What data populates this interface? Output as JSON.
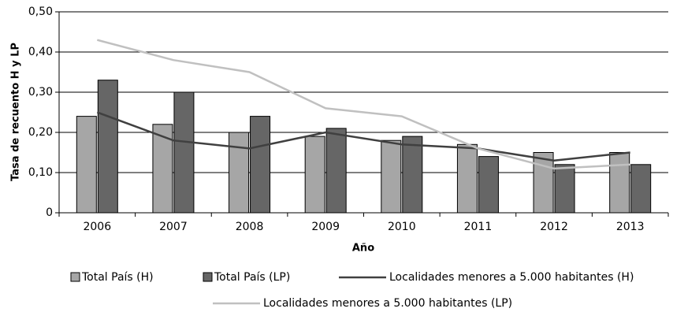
{
  "chart_data": {
    "type": "bar",
    "y_label": "Tasa de recuento H y LP",
    "x_label": "Año",
    "categories": [
      "2006",
      "2007",
      "2008",
      "2009",
      "2010",
      "2011",
      "2012",
      "2013"
    ],
    "series": [
      {
        "name": "Total País (H)",
        "type": "bar",
        "color": "#a6a6a6",
        "values": [
          0.24,
          0.22,
          0.2,
          0.19,
          0.18,
          0.17,
          0.15,
          0.15
        ]
      },
      {
        "name": "Total País (LP)",
        "type": "bar",
        "color": "#666666",
        "values": [
          0.33,
          0.3,
          0.24,
          0.21,
          0.19,
          0.14,
          0.12,
          0.12
        ]
      },
      {
        "name": "Localidades menores a 5.000 habitantes (H)",
        "type": "line",
        "color": "#404040",
        "values": [
          0.25,
          0.18,
          0.16,
          0.2,
          0.17,
          0.16,
          0.13,
          0.15
        ]
      },
      {
        "name": "Localidades menores a 5.000 habitantes (LP)",
        "type": "line",
        "color": "#c0c0c0",
        "values": [
          0.43,
          0.38,
          0.35,
          0.26,
          0.24,
          0.16,
          0.11,
          0.12
        ]
      }
    ],
    "ylim": [
      0,
      0.5
    ],
    "yticks": [
      0,
      {
        "value": 0.1,
        "label": "0,10"
      },
      {
        "value": 0.2,
        "label": "0,20"
      },
      {
        "value": 0.3,
        "label": "0,30"
      },
      {
        "value": 0.4,
        "label": "0,40"
      },
      {
        "value": 0.5,
        "label": "0,50"
      }
    ],
    "grid": true
  }
}
